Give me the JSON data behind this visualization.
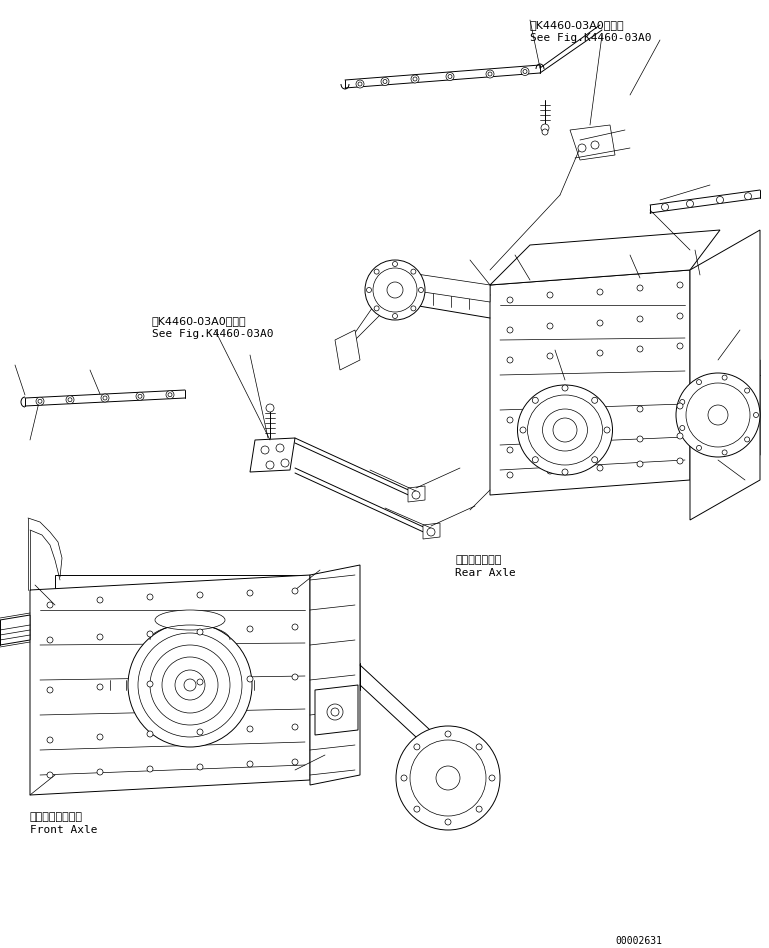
{
  "bg_color": "#ffffff",
  "line_color": "#000000",
  "fig_width": 7.69,
  "fig_height": 9.48,
  "dpi": 100,
  "part_number": "00002631",
  "labels": {
    "rear_axle_jp": "リヤーアクスル",
    "rear_axle_en": "Rear Axle",
    "front_axle_jp": "フロントアクスル",
    "front_axle_en": "Front Axle",
    "ref_top_jp": "第K4460-03A0図参照",
    "ref_top_en": "See Fig.K4460-03A0",
    "ref_mid_jp": "第K4460-03A0図参照",
    "ref_mid_en": "See Fig.K4460-03A0"
  }
}
